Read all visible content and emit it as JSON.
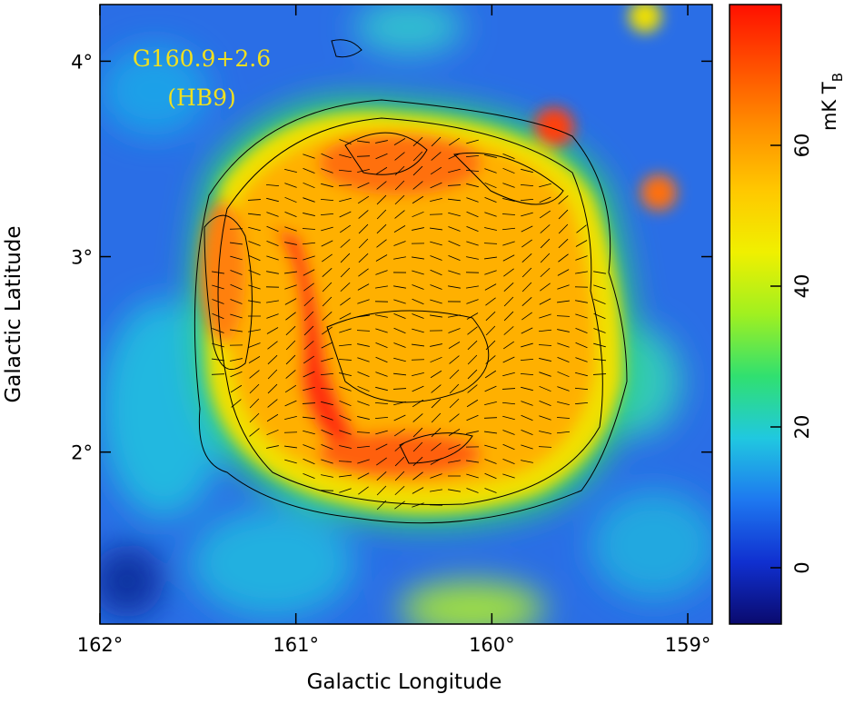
{
  "chart_data": {
    "type": "image",
    "title": "G160.9+2.6",
    "subtitle": "(HB9)",
    "x_label": "Galactic Longitude",
    "y_label": "Galactic Latitude",
    "xlim": [
      162.0,
      158.875
    ],
    "ylim": [
      1.12,
      4.29
    ],
    "xticks": [
      {
        "value": 162,
        "label": "162°"
      },
      {
        "value": 161,
        "label": "161°"
      },
      {
        "value": 160,
        "label": "160°"
      },
      {
        "value": 159,
        "label": "159°"
      }
    ],
    "yticks": [
      {
        "value": 2,
        "label": "2°"
      },
      {
        "value": 3,
        "label": "3°"
      },
      {
        "value": 4,
        "label": "4°"
      }
    ],
    "colorbar": {
      "label": "mK T",
      "label_sub": "B",
      "lim": [
        -8,
        80
      ],
      "ticks": [
        0,
        20,
        40,
        60
      ],
      "colormap": [
        "#0a0a6e",
        "#1030d0",
        "#1e78f0",
        "#20c8e0",
        "#30e070",
        "#a0f020",
        "#f0f000",
        "#ffc800",
        "#ff9000",
        "#ff5000",
        "#ff1000"
      ]
    }
  }
}
